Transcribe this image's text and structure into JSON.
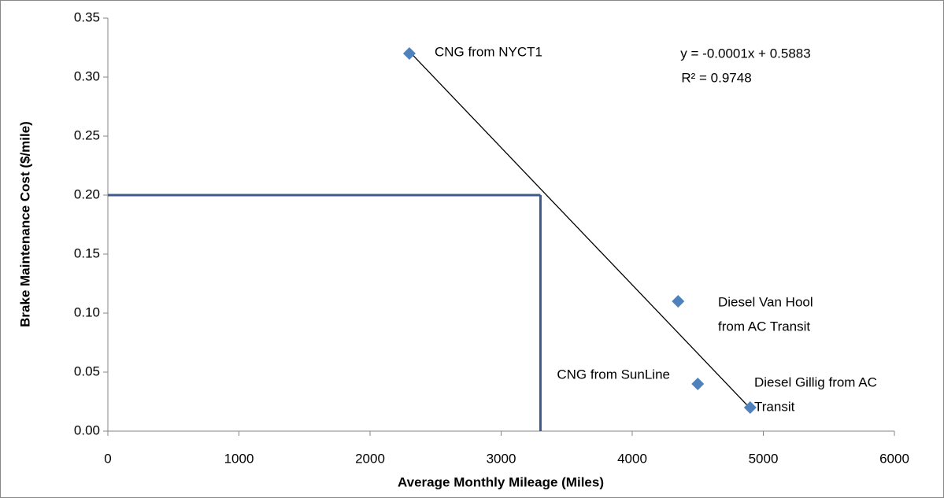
{
  "chart_data": {
    "type": "scatter",
    "x_label": "Average Monthly Mileage (Miles)",
    "y_label": "Brake Maintenance Cost ($/mile)",
    "series": [
      {
        "color": "#4f81bd",
        "x": [
          2300,
          4350,
          4500,
          4900
        ],
        "values": [
          0.32,
          0.11,
          0.04,
          0.02
        ],
        "labels": [
          [
            "CNG from NYCT1"
          ],
          [
            "Diesel Van Hool",
            "from AC Transit"
          ],
          [
            "CNG from SunLine"
          ],
          [
            "Diesel Gillig from AC",
            "Transit"
          ]
        ]
      }
    ],
    "trendline": {
      "color": "#000000",
      "equation": "y = -0.0001x + 0.5883",
      "r_squared": "R² = 0.9748"
    },
    "reference_point": {
      "x": 3300,
      "y": 0.2,
      "color": "#3d5a8a"
    },
    "xlim": [
      0,
      6000
    ],
    "xticks": [
      0,
      1000,
      2000,
      3000,
      4000,
      5000,
      6000
    ],
    "ylim": [
      0,
      0.35
    ],
    "yticks": [
      {
        "value": 0,
        "label": "0.00"
      },
      {
        "value": 0.05,
        "label": "0.05"
      },
      {
        "value": 0.1,
        "label": "0.10"
      },
      {
        "value": 0.15,
        "label": "0.15"
      },
      {
        "value": 0.2,
        "label": "0.20"
      },
      {
        "value": 0.25,
        "label": "0.25"
      },
      {
        "value": 0.3,
        "label": "0.30"
      },
      0.35
    ]
  }
}
